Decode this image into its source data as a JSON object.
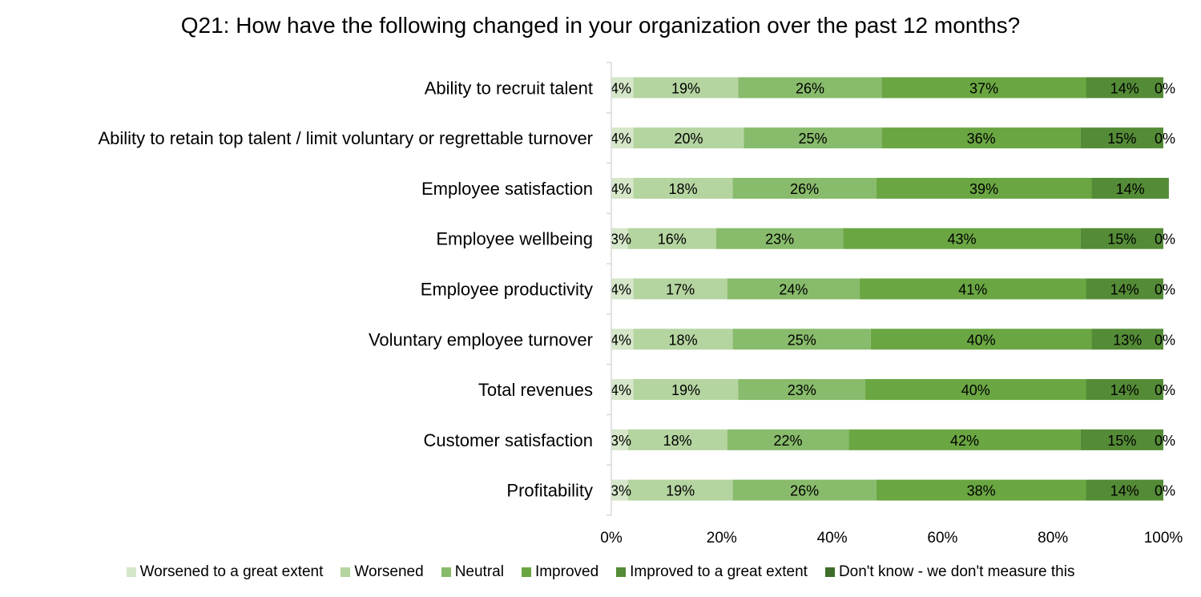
{
  "chart_data": {
    "type": "bar",
    "orientation": "horizontal",
    "stacked": true,
    "title": "Q21: How have the following changed in your organization over the past 12 months?",
    "categories": [
      "Ability to recruit talent",
      "Ability to retain top talent / limit voluntary or regrettable turnover",
      "Employee satisfaction",
      "Employee wellbeing",
      "Employee productivity",
      "Voluntary employee turnover",
      "Total revenues",
      "Customer satisfaction",
      "Profitability"
    ],
    "series": [
      {
        "name": "Worsened to a great extent",
        "color": "#d5e6c9",
        "values": [
          4,
          4,
          4,
          3,
          4,
          4,
          4,
          3,
          3
        ],
        "labels": [
          "4%",
          "4%",
          "4%",
          "3%",
          "4%",
          "4%",
          "4%",
          "3%",
          "3%"
        ]
      },
      {
        "name": "Worsened",
        "color": "#b4d4a0",
        "values": [
          19,
          20,
          18,
          16,
          17,
          18,
          19,
          18,
          19
        ],
        "labels": [
          "19%",
          "20%",
          "18%",
          "16%",
          "17%",
          "18%",
          "19%",
          "18%",
          "19%"
        ]
      },
      {
        "name": "Neutral",
        "color": "#88bb6b",
        "values": [
          26,
          25,
          26,
          23,
          24,
          25,
          23,
          22,
          26
        ],
        "labels": [
          "26%",
          "25%",
          "26%",
          "23%",
          "24%",
          "25%",
          "23%",
          "22%",
          "26%"
        ]
      },
      {
        "name": "Improved",
        "color": "#6aa642",
        "values": [
          37,
          36,
          39,
          43,
          41,
          40,
          40,
          42,
          38
        ],
        "labels": [
          "37%",
          "36%",
          "39%",
          "43%",
          "41%",
          "40%",
          "40%",
          "42%",
          "38%"
        ]
      },
      {
        "name": "Improved to a great extent",
        "color": "#548b36",
        "values": [
          14,
          15,
          14,
          15,
          14,
          13,
          14,
          15,
          14
        ],
        "labels": [
          "14%",
          "15%",
          "14%",
          "15%",
          "14%",
          "13%",
          "14%",
          "15%",
          "14%"
        ]
      },
      {
        "name": "Don't know - we don't measure this",
        "color": "#3e6e2a",
        "values": [
          0,
          0,
          null,
          0,
          0,
          0,
          0,
          0,
          0
        ],
        "labels": [
          "0%",
          "0%",
          "",
          "0%",
          "0%",
          "0%",
          "0%",
          "0%",
          "0%"
        ]
      }
    ],
    "xlim": [
      0,
      100
    ],
    "x_ticks": [
      "0%",
      "20%",
      "40%",
      "60%",
      "80%",
      "100%"
    ],
    "legend_position": "bottom",
    "grid": false
  }
}
